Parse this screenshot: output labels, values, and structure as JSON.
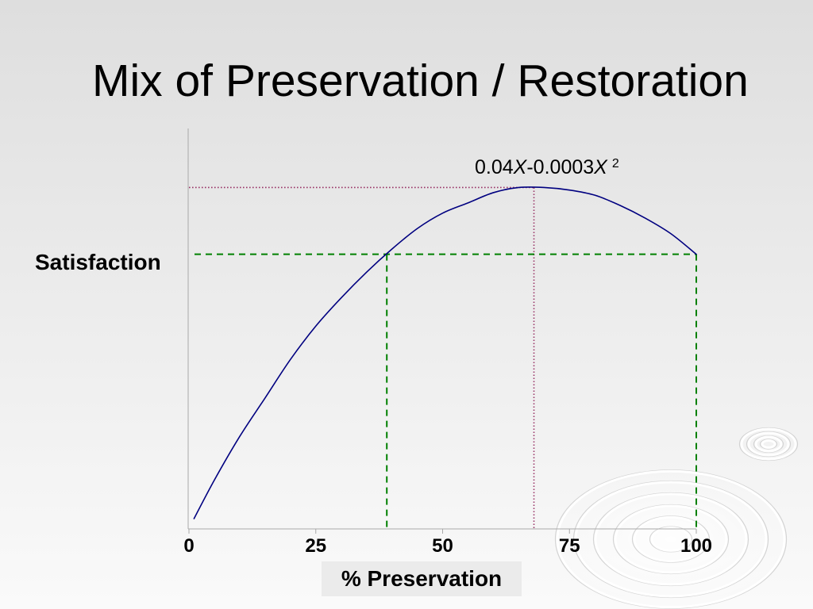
{
  "slide": {
    "background_top": "#dedede",
    "background_bottom": "#fafafa",
    "label_box_color": "#ebebeb"
  },
  "chart_data": {
    "type": "line",
    "title": "Mix of Preservation / Restoration",
    "xlabel": "% Preservation",
    "ylabel": "Satisfaction",
    "xlim": [
      0,
      100
    ],
    "ylim": [
      0,
      1.56
    ],
    "x_ticks": [
      0,
      25,
      50,
      75,
      100
    ],
    "grid": false,
    "legend": false,
    "series": [
      {
        "color": "#000080",
        "x": [
          1,
          5,
          10,
          15,
          20,
          25,
          30,
          35,
          40,
          45,
          50,
          55,
          60,
          65,
          70,
          75,
          80,
          85,
          90,
          95,
          100
        ],
        "y": [
          0.04,
          0.19,
          0.36,
          0.51,
          0.66,
          0.79,
          0.9,
          1.0,
          1.09,
          1.17,
          1.23,
          1.27,
          1.31,
          1.33,
          1.33,
          1.32,
          1.3,
          1.26,
          1.21,
          1.15,
          1.07
        ]
      }
    ],
    "formula_label": {
      "coef_a": "0.04",
      "var_a": "X",
      "coef_b": "-0.0003",
      "var_b": "X",
      "exponent": "2"
    },
    "peak_marker": {
      "x": 68,
      "y": 1.33,
      "color": "#993366"
    },
    "level_marker": {
      "y": 1.07,
      "x": [
        39,
        100
      ],
      "color": "#008000"
    }
  }
}
